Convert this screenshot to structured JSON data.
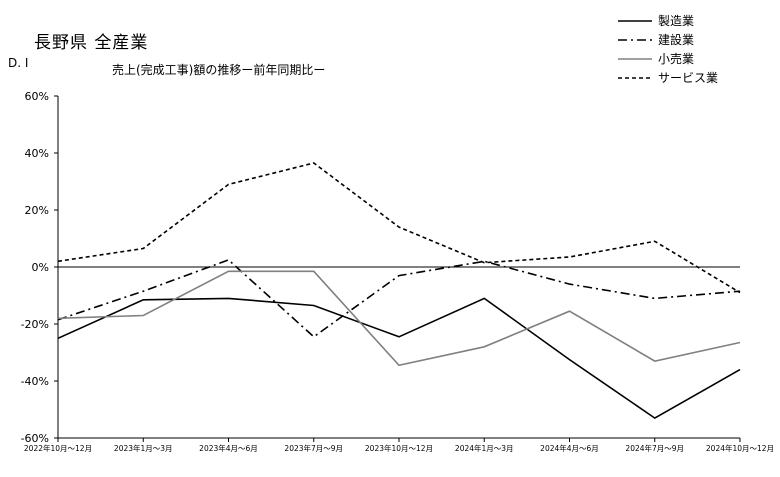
{
  "title": "長野県 全産業",
  "di_label": "D. I",
  "subtitle": "売上(完成工事)額の推移ー前年同期比ー",
  "chart_data": {
    "type": "line",
    "categories": [
      "2022年10月～12月",
      "2023年1月～3月",
      "2023年4月～6月",
      "2023年7月～9月",
      "2023年10月～12月",
      "2024年1月～3月",
      "2024年4月～6月",
      "2024年7月～9月",
      "2024年10月～12月"
    ],
    "y_ticks": [
      "60%",
      "40%",
      "20%",
      "0%",
      "-20%",
      "-40%",
      "-60%"
    ],
    "ylim": [
      -60,
      60
    ],
    "legend_position": "top-right",
    "series": [
      {
        "name": "製造業",
        "color": "#000000",
        "dash": "solid",
        "values": [
          -25.0,
          -11.5,
          -11.0,
          -13.5,
          -24.5,
          -11.0,
          -32.5,
          -53.0,
          -36.0
        ]
      },
      {
        "name": "建設業",
        "color": "#000000",
        "dash": "dashdot",
        "values": [
          -18.5,
          -8.5,
          2.5,
          -24.5,
          -3.0,
          2.0,
          -6.0,
          -11.0,
          -8.5
        ]
      },
      {
        "name": "小売業",
        "color": "#808080",
        "dash": "solid",
        "values": [
          -18.0,
          -17.0,
          -1.5,
          -1.5,
          -34.5,
          -28.0,
          -15.5,
          -33.0,
          -26.5
        ]
      },
      {
        "name": "サービス業",
        "color": "#000000",
        "dash": "dashed",
        "values": [
          2.0,
          6.5,
          29.0,
          36.5,
          14.0,
          1.5,
          3.5,
          9.0,
          -9.0
        ]
      }
    ]
  }
}
